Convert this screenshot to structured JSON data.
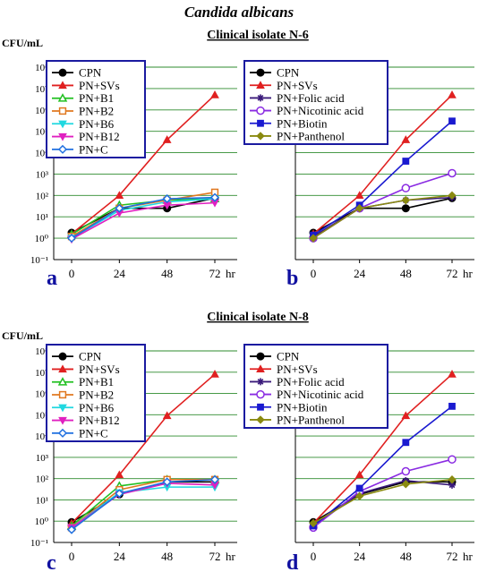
{
  "figure": {
    "title": "Candida albicans",
    "sections": [
      {
        "title": "Clinical isolate N-6",
        "ylabel": "CFU/mL"
      },
      {
        "title": "Clinical isolate N-8",
        "ylabel": "CFU/mL"
      }
    ]
  },
  "chart_data": [
    {
      "panel_letter": "a",
      "type": "line",
      "x": [
        0,
        24,
        48,
        72
      ],
      "x_unit": "hr",
      "yscale": "log",
      "ylim": [
        0.1,
        100000000
      ],
      "yticks": [
        "10⁻¹",
        "10⁰",
        "10¹",
        "10²",
        "10³",
        "10⁴",
        "10⁵",
        "10⁶",
        "10⁷",
        "10⁸"
      ],
      "grid": "horizontal",
      "legend_position": "top-left",
      "series": [
        {
          "name": "CPN",
          "color": "#000000",
          "marker": "circle",
          "values": [
            1.8,
            25,
            25,
            75
          ]
        },
        {
          "name": "PN+SVs",
          "color": "#e02020",
          "marker": "triangle",
          "values": [
            1.6,
            100,
            40000,
            5000000
          ]
        },
        {
          "name": "PN+B1",
          "color": "#22c022",
          "marker": "triangle-open",
          "values": [
            1.5,
            35,
            60,
            70
          ]
        },
        {
          "name": "PN+B2",
          "color": "#e07820",
          "marker": "square-open",
          "values": [
            1.2,
            25,
            60,
            140
          ]
        },
        {
          "name": "PN+B6",
          "color": "#20d8e0",
          "marker": "triangle-down",
          "values": [
            1.0,
            20,
            50,
            70
          ]
        },
        {
          "name": "PN+B12",
          "color": "#e020c0",
          "marker": "triangle-down",
          "values": [
            0.9,
            15,
            35,
            45
          ]
        },
        {
          "name": "PN+C",
          "color": "#2070e0",
          "marker": "diamond-open",
          "values": [
            1.0,
            25,
            70,
            80
          ]
        }
      ]
    },
    {
      "panel_letter": "b",
      "type": "line",
      "x": [
        0,
        24,
        48,
        72
      ],
      "x_unit": "hr",
      "yscale": "log",
      "ylim": [
        0.1,
        100000000
      ],
      "grid": "horizontal",
      "legend_position": "top-left",
      "series": [
        {
          "name": "CPN",
          "color": "#000000",
          "marker": "circle",
          "values": [
            1.8,
            25,
            25,
            75
          ]
        },
        {
          "name": "PN+SVs",
          "color": "#e02020",
          "marker": "triangle",
          "values": [
            1.6,
            100,
            40000,
            5000000
          ]
        },
        {
          "name": "PN+Folic acid",
          "color": "#3a1a7a",
          "marker": "star",
          "values": [
            1.2,
            25,
            60,
            80
          ]
        },
        {
          "name": "PN+Nicotinic acid",
          "color": "#8a2be2",
          "marker": "circle-open",
          "values": [
            1.0,
            25,
            220,
            1100
          ]
        },
        {
          "name": "PN+Biotin",
          "color": "#1a1ad0",
          "marker": "square",
          "values": [
            1.4,
            35,
            4000,
            300000
          ]
        },
        {
          "name": "PN+Panthenol",
          "color": "#8a8a10",
          "marker": "diamond",
          "values": [
            1.0,
            25,
            60,
            100
          ]
        }
      ]
    },
    {
      "panel_letter": "c",
      "type": "line",
      "x": [
        0,
        24,
        48,
        72
      ],
      "x_unit": "hr",
      "yscale": "log",
      "ylim": [
        0.1,
        100000000
      ],
      "grid": "horizontal",
      "legend_position": "top-left",
      "series": [
        {
          "name": "CPN",
          "color": "#000000",
          "marker": "circle",
          "values": [
            0.9,
            18,
            70,
            70
          ]
        },
        {
          "name": "PN+SVs",
          "color": "#e02020",
          "marker": "triangle",
          "values": [
            0.8,
            150,
            90000,
            8000000
          ]
        },
        {
          "name": "PN+B1",
          "color": "#22c022",
          "marker": "triangle-open",
          "values": [
            0.6,
            45,
            90,
            90
          ]
        },
        {
          "name": "PN+B2",
          "color": "#e07820",
          "marker": "square-open",
          "values": [
            0.5,
            30,
            90,
            90
          ]
        },
        {
          "name": "PN+B6",
          "color": "#20d8e0",
          "marker": "triangle-down",
          "values": [
            0.5,
            22,
            40,
            40
          ]
        },
        {
          "name": "PN+B12",
          "color": "#e020c0",
          "marker": "triangle-down",
          "values": [
            0.5,
            18,
            60,
            50
          ]
        },
        {
          "name": "PN+C",
          "color": "#2070e0",
          "marker": "diamond-open",
          "values": [
            0.4,
            20,
            70,
            90
          ]
        }
      ]
    },
    {
      "panel_letter": "d",
      "type": "line",
      "x": [
        0,
        24,
        48,
        72
      ],
      "x_unit": "hr",
      "yscale": "log",
      "ylim": [
        0.1,
        100000000
      ],
      "grid": "horizontal",
      "legend_position": "top-left",
      "series": [
        {
          "name": "CPN",
          "color": "#000000",
          "marker": "circle",
          "values": [
            0.9,
            18,
            70,
            70
          ]
        },
        {
          "name": "PN+SVs",
          "color": "#e02020",
          "marker": "triangle",
          "values": [
            0.8,
            150,
            90000,
            8000000
          ]
        },
        {
          "name": "PN+Folic acid",
          "color": "#3a1a7a",
          "marker": "star",
          "values": [
            0.6,
            20,
            80,
            50
          ]
        },
        {
          "name": "PN+Nicotinic acid",
          "color": "#8a2be2",
          "marker": "circle-open",
          "values": [
            0.5,
            25,
            220,
            800
          ]
        },
        {
          "name": "PN+Biotin",
          "color": "#1a1ad0",
          "marker": "square",
          "values": [
            0.6,
            35,
            5000,
            250000
          ]
        },
        {
          "name": "PN+Panthenol",
          "color": "#8a8a10",
          "marker": "diamond",
          "values": [
            0.8,
            15,
            55,
            90
          ]
        }
      ]
    }
  ]
}
